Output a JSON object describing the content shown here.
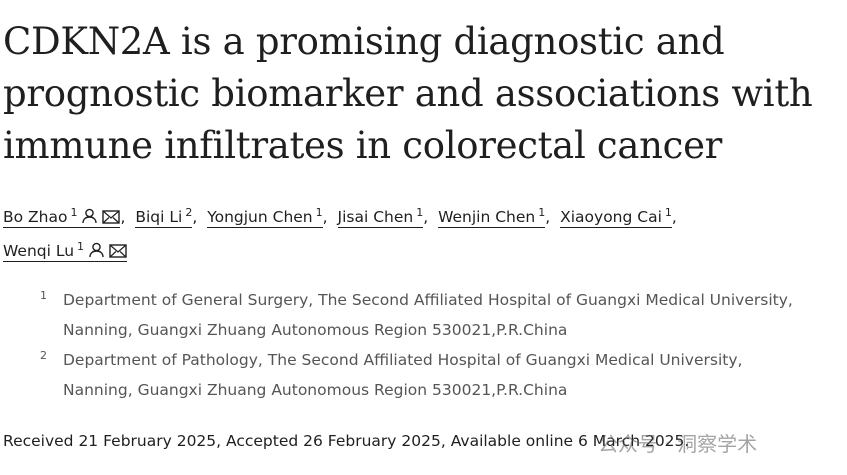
{
  "title_lines": [
    "CDKN2A is a promising diagnostic and",
    "prognostic biomarker and associations with",
    "immune infiltrates in colorectal cancer"
  ],
  "authors": [
    {
      "name": "Bo Zhao",
      "affiliation": "1",
      "corresponding": true
    },
    {
      "name": "Biqi Li",
      "affiliation": "2",
      "corresponding": false
    },
    {
      "name": "Yongjun Chen",
      "affiliation": "1",
      "corresponding": false
    },
    {
      "name": "Jisai Chen",
      "affiliation": "1",
      "corresponding": false
    },
    {
      "name": "Wenjin Chen",
      "affiliation": "1",
      "corresponding": false
    },
    {
      "name": "Xiaoyong Cai",
      "affiliation": "1",
      "corresponding": false
    },
    {
      "name": "Wenqi Lu",
      "affiliation": "1",
      "corresponding": true
    }
  ],
  "separator": ",",
  "affiliations": [
    {
      "label": "1",
      "text": "Department of General Surgery, The Second Affiliated Hospital of Guangxi Medical University, Nanning, Guangxi Zhuang Autonomous Region 530021,P.R.China"
    },
    {
      "label": "2",
      "text": "Department of Pathology, The Second Affiliated Hospital of Guangxi Medical University, Nanning, Guangxi Zhuang Autonomous Region 530021,P.R.China"
    }
  ],
  "dates": "Received 21 February 2025, Accepted 26 February 2025, Available online 6 March 2025.",
  "watermark": "公众号 · 洞察学术"
}
